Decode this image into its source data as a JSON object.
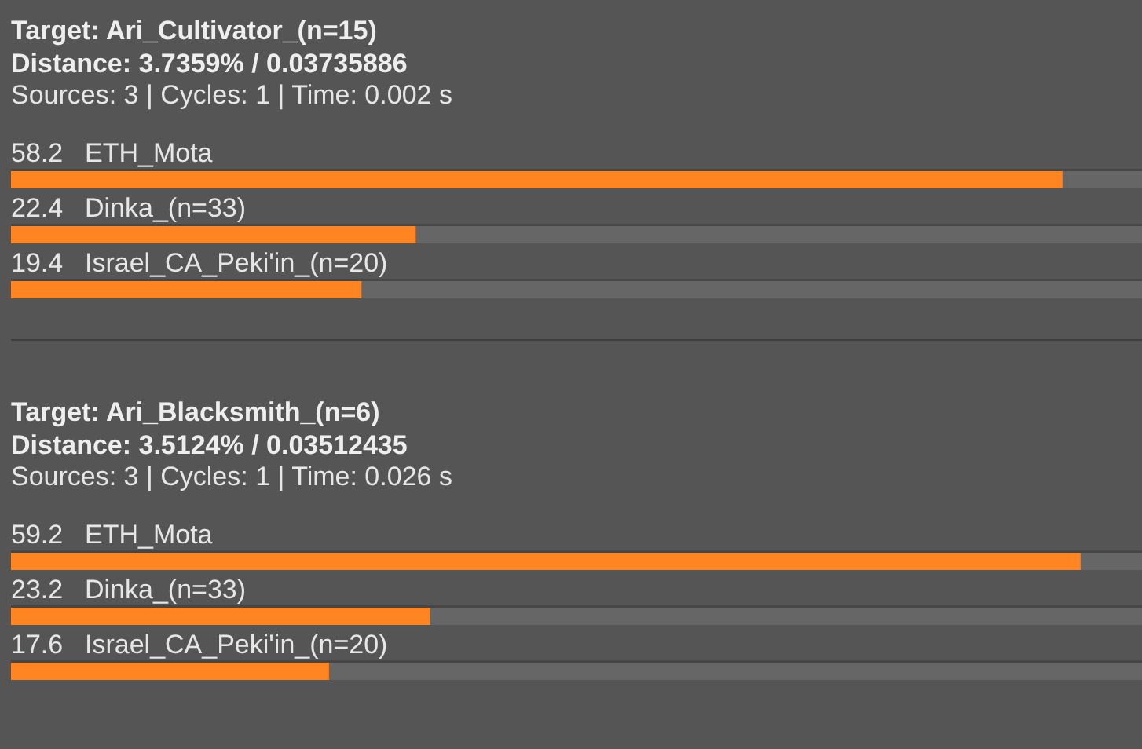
{
  "chart_data": [
    {
      "type": "bar",
      "orientation": "horizontal",
      "title": "Target: Ari_Cultivator_(n=15)",
      "subtitle": "Distance: 3.7359% / 0.03735886",
      "annotations": [
        "Sources: 3 | Cycles: 1 | Time: 0.002 s"
      ],
      "categories": [
        "ETH_Mota",
        "Dinka_(n=33)",
        "Israel_CA_Peki'in_(n=20)"
      ],
      "values": [
        58.2,
        22.4,
        19.4
      ],
      "color": "#ff8522",
      "xlim": [
        0,
        62.6
      ],
      "data_labels": true,
      "tick_labels": "y"
    },
    {
      "type": "bar",
      "orientation": "horizontal",
      "title": "Target: Ari_Blacksmith_(n=6)",
      "subtitle": "Distance: 3.5124% / 0.03512435",
      "annotations": [
        "Sources: 3 | Cycles: 1 | Time: 0.026 s"
      ],
      "categories": [
        "ETH_Mota",
        "Dinka_(n=33)",
        "Israel_CA_Peki'in_(n=20)"
      ],
      "values": [
        59.2,
        23.2,
        17.6
      ],
      "color": "#ff8522",
      "xlim": [
        0,
        62.6
      ],
      "data_labels": true,
      "tick_labels": "y"
    }
  ]
}
